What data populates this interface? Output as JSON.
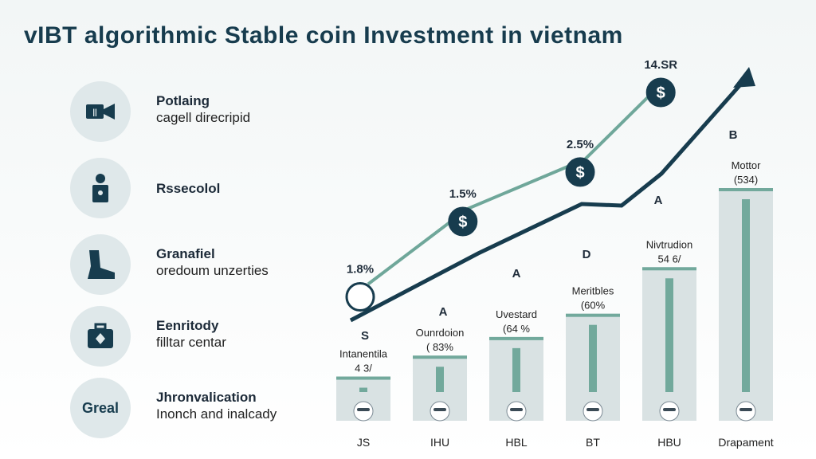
{
  "title": "vIBT algorithmic Stable coin Investment in vietnam",
  "features": [
    {
      "icon": "video-camera-icon",
      "title": "Potlaing",
      "desc": "cagell direcripid"
    },
    {
      "icon": "lock-person-icon",
      "title": "Rssecolol",
      "desc": ""
    },
    {
      "icon": "boot-icon",
      "title": "Granafiel",
      "desc": "oredoum unzerties"
    },
    {
      "icon": "medical-kit-icon",
      "title": "Eenritody",
      "desc": "filltar centar"
    },
    {
      "icon": "",
      "icon_text": "Greal",
      "title": "Jhronvalication",
      "desc": "Inonch  and inalcady"
    }
  ],
  "colors": {
    "dark": "#173c4e",
    "teal": "#6fa79a",
    "bar_bg": "#d9e2e3",
    "bar_fill": "#72a99c",
    "circle": "#dfe8ea"
  },
  "chart_data": {
    "type": "bar",
    "categories": [
      "JS",
      "IHU",
      "HBL",
      "BT",
      "HBU",
      "Drapament"
    ],
    "values": [
      0.19,
      0.28,
      0.36,
      0.46,
      0.66,
      1.0
    ],
    "bar_labels": [
      {
        "name": "Intanentila",
        "value": "4 3/"
      },
      {
        "name": "Ounrdoion",
        "value": "( 83%"
      },
      {
        "name": "Uvestard",
        "value": "(64 %"
      },
      {
        "name": "Meritbles",
        "value": "(60%"
      },
      {
        "name": "Nivtrudion",
        "value": "54 6/"
      },
      {
        "name": "Mottor",
        "value": "(534)"
      }
    ],
    "line_points": [
      {
        "x": 0,
        "y": 0.05,
        "label": "1.8%",
        "icon": "coin-icon"
      },
      {
        "x": 0.28,
        "y": 0.4,
        "label": "1.5%",
        "icon": "dollar-icon"
      },
      {
        "x": 0.6,
        "y": 0.63,
        "label": "2.5%",
        "icon": "gear-dollar-icon"
      },
      {
        "x": 0.82,
        "y": 1.0,
        "label": "14.SR",
        "icon": "handshake-icon"
      }
    ],
    "annotations": [
      "S",
      "A",
      "A",
      "D",
      "A",
      "B"
    ]
  }
}
